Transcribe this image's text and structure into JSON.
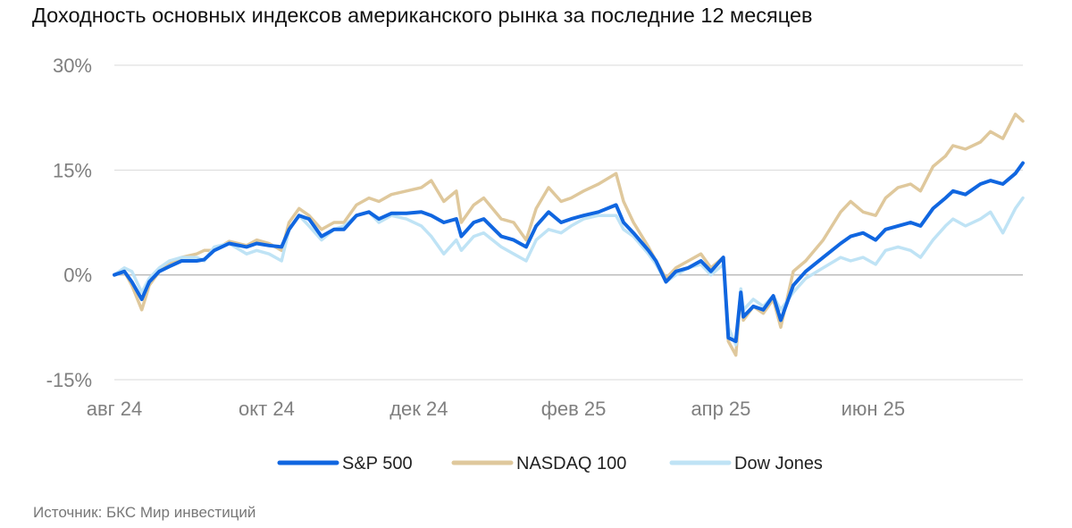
{
  "title": "Доходность основных индексов американского рынка за последние 12 месяцев",
  "source": "Источник: БКС Мир инвестиций",
  "colors": {
    "sp500": "#1066e0",
    "nasdaq100": "#dfc89c",
    "dowjones": "#bfe3f5",
    "grid": "#d9d9d9",
    "zero_line": "#bfbfbf",
    "axis_text": "#7f7f7f"
  },
  "chart_data": {
    "type": "line",
    "title": "Доходность основных индексов американского рынка за последние 12 месяцев",
    "xlabel": "",
    "ylabel": "",
    "ylim": [
      -15,
      30
    ],
    "y_ticks": [
      30,
      15,
      0,
      -15
    ],
    "y_tick_labels": [
      "30%",
      "15%",
      "0%",
      "-15%"
    ],
    "x_tick_labels": [
      "авг 24",
      "окт 24",
      "дек 24",
      "фев 25",
      "апр 25",
      "июн 25"
    ],
    "x_tick_dates": [
      "2024-08-01",
      "2024-10-01",
      "2024-12-01",
      "2025-02-01",
      "2025-04-01",
      "2025-06-01"
    ],
    "x_range": [
      "2024-08-01",
      "2025-07-31"
    ],
    "grid": true,
    "legend_position": "bottom",
    "series": [
      {
        "name": "S&P 500",
        "color": "#1066e0",
        "points": [
          [
            "2024-08-01",
            0.0
          ],
          [
            "2024-08-05",
            0.5
          ],
          [
            "2024-08-08",
            -1.0
          ],
          [
            "2024-08-12",
            -3.5
          ],
          [
            "2024-08-15",
            -1.0
          ],
          [
            "2024-08-19",
            0.5
          ],
          [
            "2024-08-23",
            1.2
          ],
          [
            "2024-08-28",
            2.0
          ],
          [
            "2024-09-03",
            2.0
          ],
          [
            "2024-09-06",
            2.2
          ],
          [
            "2024-09-10",
            3.5
          ],
          [
            "2024-09-16",
            4.5
          ],
          [
            "2024-09-23",
            4.0
          ],
          [
            "2024-09-27",
            4.5
          ],
          [
            "2024-10-02",
            4.2
          ],
          [
            "2024-10-07",
            4.0
          ],
          [
            "2024-10-10",
            6.5
          ],
          [
            "2024-10-14",
            8.5
          ],
          [
            "2024-10-18",
            8.0
          ],
          [
            "2024-10-23",
            5.5
          ],
          [
            "2024-10-28",
            6.5
          ],
          [
            "2024-11-01",
            6.5
          ],
          [
            "2024-11-06",
            8.5
          ],
          [
            "2024-11-11",
            9.0
          ],
          [
            "2024-11-15",
            8.0
          ],
          [
            "2024-11-20",
            8.8
          ],
          [
            "2024-11-26",
            8.8
          ],
          [
            "2024-12-02",
            9.0
          ],
          [
            "2024-12-06",
            8.5
          ],
          [
            "2024-12-11",
            7.5
          ],
          [
            "2024-12-16",
            8.0
          ],
          [
            "2024-12-18",
            5.5
          ],
          [
            "2024-12-23",
            7.5
          ],
          [
            "2024-12-27",
            8.0
          ],
          [
            "2025-01-03",
            5.5
          ],
          [
            "2025-01-08",
            5.0
          ],
          [
            "2025-01-13",
            4.0
          ],
          [
            "2025-01-17",
            7.0
          ],
          [
            "2025-01-22",
            9.0
          ],
          [
            "2025-01-27",
            7.5
          ],
          [
            "2025-01-31",
            8.0
          ],
          [
            "2025-02-05",
            8.5
          ],
          [
            "2025-02-11",
            9.0
          ],
          [
            "2025-02-18",
            10.0
          ],
          [
            "2025-02-21",
            7.5
          ],
          [
            "2025-02-25",
            6.0
          ],
          [
            "2025-03-03",
            3.5
          ],
          [
            "2025-03-06",
            2.0
          ],
          [
            "2025-03-10",
            -1.0
          ],
          [
            "2025-03-14",
            0.5
          ],
          [
            "2025-03-19",
            1.0
          ],
          [
            "2025-03-24",
            2.0
          ],
          [
            "2025-03-28",
            0.5
          ],
          [
            "2025-04-02",
            2.5
          ],
          [
            "2025-04-04",
            -9.0
          ],
          [
            "2025-04-07",
            -9.5
          ],
          [
            "2025-04-09",
            -2.5
          ],
          [
            "2025-04-10",
            -6.0
          ],
          [
            "2025-04-14",
            -4.5
          ],
          [
            "2025-04-18",
            -5.0
          ],
          [
            "2025-04-22",
            -3.0
          ],
          [
            "2025-04-25",
            -6.5
          ],
          [
            "2025-04-30",
            -1.5
          ],
          [
            "2025-05-05",
            0.5
          ],
          [
            "2025-05-12",
            2.5
          ],
          [
            "2025-05-19",
            4.5
          ],
          [
            "2025-05-23",
            5.5
          ],
          [
            "2025-05-28",
            6.0
          ],
          [
            "2025-06-02",
            5.0
          ],
          [
            "2025-06-06",
            6.5
          ],
          [
            "2025-06-11",
            7.0
          ],
          [
            "2025-06-16",
            7.5
          ],
          [
            "2025-06-20",
            7.0
          ],
          [
            "2025-06-25",
            9.5
          ],
          [
            "2025-06-30",
            11.0
          ],
          [
            "2025-07-03",
            12.0
          ],
          [
            "2025-07-08",
            11.5
          ],
          [
            "2025-07-14",
            13.0
          ],
          [
            "2025-07-18",
            13.5
          ],
          [
            "2025-07-23",
            13.0
          ],
          [
            "2025-07-28",
            14.5
          ],
          [
            "2025-07-31",
            16.0
          ]
        ]
      },
      {
        "name": "NASDAQ 100",
        "color": "#dfc89c",
        "points": [
          [
            "2024-08-01",
            0.0
          ],
          [
            "2024-08-05",
            0.5
          ],
          [
            "2024-08-08",
            -1.5
          ],
          [
            "2024-08-12",
            -5.0
          ],
          [
            "2024-08-15",
            -1.5
          ],
          [
            "2024-08-19",
            0.5
          ],
          [
            "2024-08-23",
            1.5
          ],
          [
            "2024-08-28",
            2.5
          ],
          [
            "2024-09-03",
            3.0
          ],
          [
            "2024-09-06",
            3.5
          ],
          [
            "2024-09-10",
            3.5
          ],
          [
            "2024-09-16",
            4.8
          ],
          [
            "2024-09-23",
            4.2
          ],
          [
            "2024-09-27",
            5.0
          ],
          [
            "2024-10-02",
            4.5
          ],
          [
            "2024-10-07",
            3.5
          ],
          [
            "2024-10-10",
            7.5
          ],
          [
            "2024-10-14",
            9.5
          ],
          [
            "2024-10-18",
            8.5
          ],
          [
            "2024-10-23",
            6.5
          ],
          [
            "2024-10-28",
            7.5
          ],
          [
            "2024-11-01",
            7.5
          ],
          [
            "2024-11-06",
            10.0
          ],
          [
            "2024-11-11",
            11.0
          ],
          [
            "2024-11-15",
            10.5
          ],
          [
            "2024-11-20",
            11.5
          ],
          [
            "2024-11-26",
            12.0
          ],
          [
            "2024-12-02",
            12.5
          ],
          [
            "2024-12-06",
            13.5
          ],
          [
            "2024-12-11",
            10.5
          ],
          [
            "2024-12-16",
            12.0
          ],
          [
            "2024-12-18",
            7.5
          ],
          [
            "2024-12-23",
            10.0
          ],
          [
            "2024-12-27",
            11.0
          ],
          [
            "2025-01-03",
            8.0
          ],
          [
            "2025-01-08",
            7.5
          ],
          [
            "2025-01-13",
            5.0
          ],
          [
            "2025-01-17",
            9.5
          ],
          [
            "2025-01-22",
            12.5
          ],
          [
            "2025-01-27",
            10.5
          ],
          [
            "2025-01-31",
            11.0
          ],
          [
            "2025-02-05",
            12.0
          ],
          [
            "2025-02-11",
            13.0
          ],
          [
            "2025-02-18",
            14.5
          ],
          [
            "2025-02-21",
            10.5
          ],
          [
            "2025-02-25",
            7.5
          ],
          [
            "2025-03-03",
            4.0
          ],
          [
            "2025-03-06",
            2.0
          ],
          [
            "2025-03-10",
            -0.5
          ],
          [
            "2025-03-14",
            1.0
          ],
          [
            "2025-03-19",
            2.0
          ],
          [
            "2025-03-24",
            3.0
          ],
          [
            "2025-03-28",
            1.0
          ],
          [
            "2025-04-02",
            2.5
          ],
          [
            "2025-04-04",
            -9.5
          ],
          [
            "2025-04-07",
            -11.5
          ],
          [
            "2025-04-09",
            -2.5
          ],
          [
            "2025-04-10",
            -6.5
          ],
          [
            "2025-04-14",
            -4.5
          ],
          [
            "2025-04-18",
            -5.5
          ],
          [
            "2025-04-22",
            -3.5
          ],
          [
            "2025-04-25",
            -7.5
          ],
          [
            "2025-04-30",
            0.5
          ],
          [
            "2025-05-05",
            2.0
          ],
          [
            "2025-05-12",
            5.0
          ],
          [
            "2025-05-19",
            9.0
          ],
          [
            "2025-05-23",
            10.5
          ],
          [
            "2025-05-28",
            9.0
          ],
          [
            "2025-06-02",
            8.5
          ],
          [
            "2025-06-06",
            11.0
          ],
          [
            "2025-06-11",
            12.5
          ],
          [
            "2025-06-16",
            13.0
          ],
          [
            "2025-06-20",
            12.0
          ],
          [
            "2025-06-25",
            15.5
          ],
          [
            "2025-06-30",
            17.0
          ],
          [
            "2025-07-03",
            18.5
          ],
          [
            "2025-07-08",
            18.0
          ],
          [
            "2025-07-14",
            19.0
          ],
          [
            "2025-07-18",
            20.5
          ],
          [
            "2025-07-23",
            19.5
          ],
          [
            "2025-07-28",
            23.0
          ],
          [
            "2025-07-31",
            22.0
          ]
        ]
      },
      {
        "name": "Dow Jones",
        "color": "#bfe3f5",
        "points": [
          [
            "2024-08-01",
            0.0
          ],
          [
            "2024-08-05",
            1.0
          ],
          [
            "2024-08-08",
            0.5
          ],
          [
            "2024-08-12",
            -2.5
          ],
          [
            "2024-08-15",
            -0.5
          ],
          [
            "2024-08-19",
            1.0
          ],
          [
            "2024-08-23",
            2.0
          ],
          [
            "2024-08-28",
            2.5
          ],
          [
            "2024-09-03",
            2.5
          ],
          [
            "2024-09-06",
            2.0
          ],
          [
            "2024-09-10",
            4.0
          ],
          [
            "2024-09-16",
            4.5
          ],
          [
            "2024-09-23",
            3.0
          ],
          [
            "2024-09-27",
            3.5
          ],
          [
            "2024-10-02",
            3.0
          ],
          [
            "2024-10-07",
            2.0
          ],
          [
            "2024-10-10",
            6.5
          ],
          [
            "2024-10-14",
            8.5
          ],
          [
            "2024-10-18",
            7.0
          ],
          [
            "2024-10-23",
            5.0
          ],
          [
            "2024-10-28",
            6.5
          ],
          [
            "2024-11-01",
            7.0
          ],
          [
            "2024-11-06",
            8.5
          ],
          [
            "2024-11-11",
            9.0
          ],
          [
            "2024-11-15",
            7.5
          ],
          [
            "2024-11-20",
            8.5
          ],
          [
            "2024-11-26",
            8.0
          ],
          [
            "2024-12-02",
            7.0
          ],
          [
            "2024-12-06",
            5.5
          ],
          [
            "2024-12-11",
            3.0
          ],
          [
            "2024-12-16",
            5.0
          ],
          [
            "2024-12-18",
            3.5
          ],
          [
            "2024-12-23",
            5.5
          ],
          [
            "2024-12-27",
            6.0
          ],
          [
            "2025-01-03",
            4.0
          ],
          [
            "2025-01-08",
            3.0
          ],
          [
            "2025-01-13",
            2.0
          ],
          [
            "2025-01-17",
            5.0
          ],
          [
            "2025-01-22",
            6.5
          ],
          [
            "2025-01-27",
            6.0
          ],
          [
            "2025-01-31",
            7.0
          ],
          [
            "2025-02-05",
            8.0
          ],
          [
            "2025-02-11",
            8.5
          ],
          [
            "2025-02-18",
            8.5
          ],
          [
            "2025-02-21",
            6.5
          ],
          [
            "2025-02-25",
            5.5
          ],
          [
            "2025-03-03",
            3.0
          ],
          [
            "2025-03-06",
            1.5
          ],
          [
            "2025-03-10",
            -1.0
          ],
          [
            "2025-03-14",
            0.0
          ],
          [
            "2025-03-19",
            1.0
          ],
          [
            "2025-03-24",
            1.5
          ],
          [
            "2025-03-28",
            0.0
          ],
          [
            "2025-04-02",
            1.5
          ],
          [
            "2025-04-04",
            -7.5
          ],
          [
            "2025-04-07",
            -10.0
          ],
          [
            "2025-04-09",
            -2.0
          ],
          [
            "2025-04-10",
            -5.0
          ],
          [
            "2025-04-14",
            -3.5
          ],
          [
            "2025-04-18",
            -4.5
          ],
          [
            "2025-04-22",
            -3.0
          ],
          [
            "2025-04-25",
            -5.0
          ],
          [
            "2025-04-30",
            -2.5
          ],
          [
            "2025-05-05",
            -0.5
          ],
          [
            "2025-05-12",
            1.0
          ],
          [
            "2025-05-19",
            2.5
          ],
          [
            "2025-05-23",
            2.0
          ],
          [
            "2025-05-28",
            2.5
          ],
          [
            "2025-06-02",
            1.5
          ],
          [
            "2025-06-06",
            3.5
          ],
          [
            "2025-06-11",
            4.0
          ],
          [
            "2025-06-16",
            3.5
          ],
          [
            "2025-06-20",
            2.5
          ],
          [
            "2025-06-25",
            5.0
          ],
          [
            "2025-06-30",
            7.0
          ],
          [
            "2025-07-03",
            8.0
          ],
          [
            "2025-07-08",
            7.0
          ],
          [
            "2025-07-14",
            8.0
          ],
          [
            "2025-07-18",
            9.0
          ],
          [
            "2025-07-23",
            6.0
          ],
          [
            "2025-07-28",
            9.5
          ],
          [
            "2025-07-31",
            11.0
          ]
        ]
      }
    ]
  }
}
